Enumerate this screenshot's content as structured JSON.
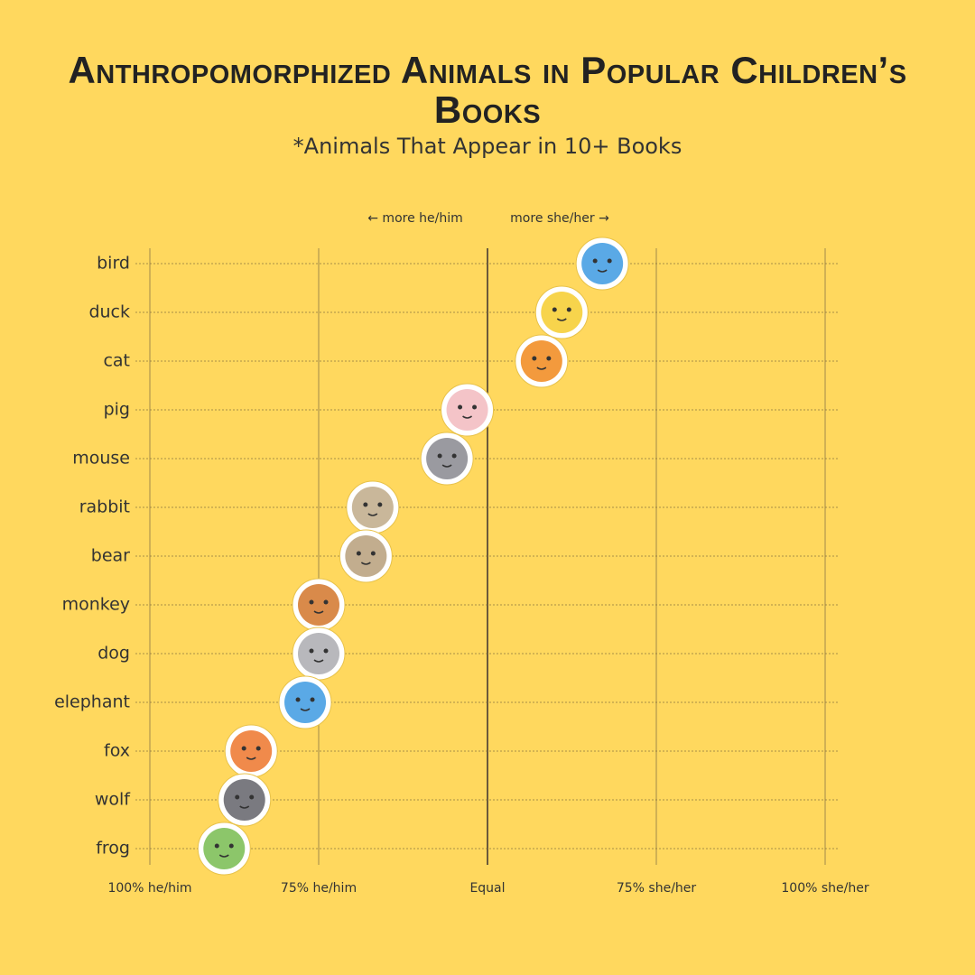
{
  "chart_data": {
    "type": "dot",
    "title": "Anthropomorphized Animals in Popular Children’s Books",
    "subtitle": "*Animals That Appear in 10+ Books",
    "annotations": [
      "← more he/him",
      "more she/her →"
    ],
    "categories": [
      "bird",
      "duck",
      "cat",
      "pig",
      "mouse",
      "rabbit",
      "bear",
      "monkey",
      "dog",
      "elephant",
      "fox",
      "wolf",
      "frog"
    ],
    "values": [
      67,
      61,
      58,
      47,
      44,
      33,
      32,
      25,
      25,
      23,
      15,
      14,
      11
    ],
    "colors": [
      "#5aa9e6",
      "#f7d44c",
      "#f39a3d",
      "#f4c4c8",
      "#9a9aa0",
      "#c9b79a",
      "#c2ad8e",
      "#d98a4a",
      "#b8b8bc",
      "#5aa9e6",
      "#f08a4b",
      "#7a7a80",
      "#8cc66a"
    ],
    "xlim": [
      0,
      100
    ],
    "xticks": [
      {
        "value": 0,
        "label": "100% he/him"
      },
      {
        "value": 25,
        "label": "75% he/him"
      },
      {
        "value": 50,
        "label": "Equal"
      },
      {
        "value": 75,
        "label": "75% she/her"
      },
      {
        "value": 100,
        "label": "100% she/her"
      }
    ],
    "grid": true
  }
}
